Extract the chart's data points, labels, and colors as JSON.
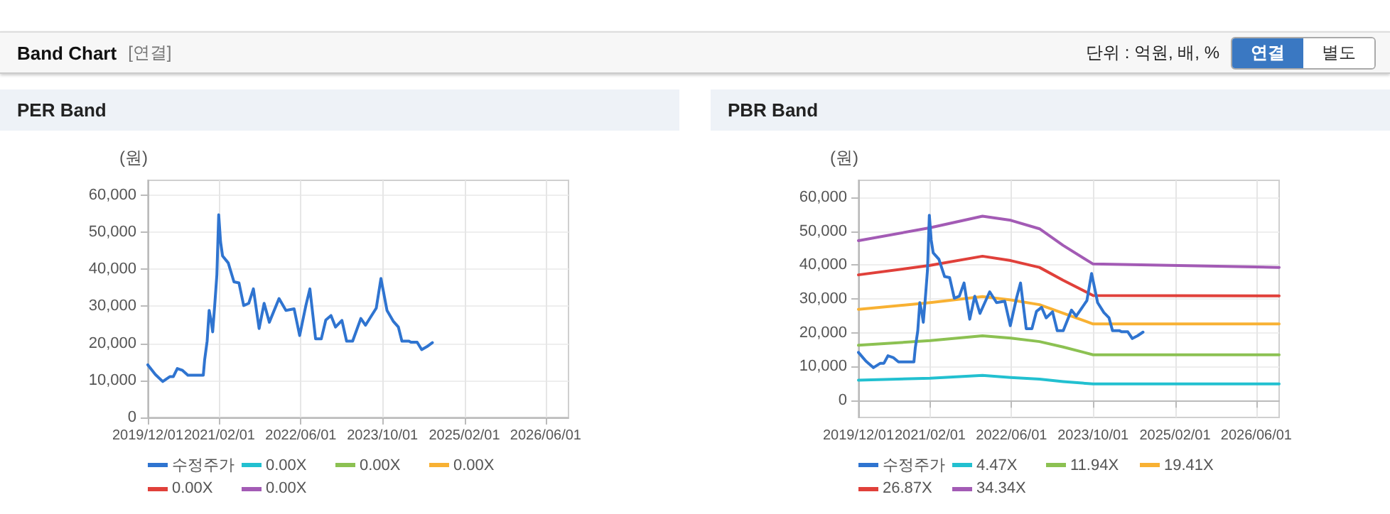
{
  "chart_data": [
    {
      "type": "line",
      "title": "PER Band",
      "ylabel": "(원)",
      "annotations": [
        "Band Chart",
        "[연결]",
        "단위 : 억원, 배, %",
        "연결",
        "별도"
      ],
      "xlim": [
        "2019-12-01",
        "2026-10-15"
      ],
      "xticks": [
        {
          "value": "2019-12-01",
          "label": "2019/12/01"
        },
        {
          "value": "2021-02-01",
          "label": "2021/02/01"
        },
        {
          "value": "2022-06-01",
          "label": "2022/06/01"
        },
        {
          "value": "2023-10-01",
          "label": "2023/10/01"
        },
        {
          "value": "2025-02-01",
          "label": "2025/02/01"
        },
        {
          "value": "2026-06-01",
          "label": "2026/06/01"
        }
      ],
      "ylim": [
        0,
        64000
      ],
      "yticks": [
        {
          "value": 0,
          "label": "0"
        },
        {
          "value": 10000,
          "label": "10,000"
        },
        {
          "value": 20000,
          "label": "20,000"
        },
        {
          "value": 30000,
          "label": "30,000"
        },
        {
          "value": 40000,
          "label": "40,000"
        },
        {
          "value": 50000,
          "label": "50,000"
        },
        {
          "value": 60000,
          "label": "60,000"
        }
      ],
      "grid": true,
      "legend": "bottom",
      "line_style": "solid",
      "series": [
        {
          "name": "수정주가",
          "color": "#2f74d0",
          "x": [
            "2019-12-01",
            "2020-01-15",
            "2020-02-28",
            "2020-04-10",
            "2020-05-01",
            "2020-05-25",
            "2020-06-25",
            "2020-07-27",
            "2020-10-27",
            "2020-11-04",
            "2020-11-19",
            "2020-12-01",
            "2020-12-12",
            "2020-12-22",
            "2021-01-04",
            "2021-01-16",
            "2021-01-27",
            "2021-02-07",
            "2021-02-19",
            "2021-03-25",
            "2021-04-28",
            "2021-05-28",
            "2021-06-25",
            "2021-07-25",
            "2021-08-22",
            "2021-09-25",
            "2021-10-25",
            "2021-11-25",
            "2022-01-22",
            "2022-03-04",
            "2022-04-22",
            "2022-05-25",
            "2022-07-01",
            "2022-07-25",
            "2022-08-28",
            "2022-10-01",
            "2022-10-28",
            "2022-11-28",
            "2022-12-25",
            "2023-02-01",
            "2023-03-01",
            "2023-04-06",
            "2023-05-25",
            "2023-06-22",
            "2023-08-25",
            "2023-09-22",
            "2023-10-28",
            "2023-12-04",
            "2024-01-04",
            "2024-01-25",
            "2024-03-07",
            "2024-03-19",
            "2024-04-25",
            "2024-05-22",
            "2024-06-22",
            "2024-07-25"
          ],
          "values": [
            14200,
            11600,
            9700,
            11000,
            11000,
            13200,
            12700,
            11400,
            11400,
            15500,
            20600,
            28900,
            26300,
            23100,
            30800,
            38500,
            54700,
            47400,
            43600,
            41700,
            36600,
            36300,
            30200,
            30800,
            34700,
            24000,
            30800,
            25700,
            32100,
            28900,
            29300,
            22100,
            30200,
            34700,
            21200,
            21200,
            26300,
            27500,
            24400,
            26200,
            20600,
            20600,
            26700,
            24900,
            29500,
            37500,
            28900,
            26000,
            24400,
            20600,
            20600,
            20300,
            20300,
            18300,
            19100,
            20200
          ]
        },
        {
          "name": "0.00X",
          "color": "#22c0d0"
        },
        {
          "name": "0.00X",
          "color": "#8cc152"
        },
        {
          "name": "0.00X",
          "color": "#f8b133"
        },
        {
          "name": "0.00X",
          "color": "#e0403a"
        },
        {
          "name": "0.00X",
          "color": "#a35bb5"
        }
      ]
    },
    {
      "type": "line",
      "title": "PBR Band",
      "ylabel": "(원)",
      "xlim": [
        "2019-12-01",
        "2026-10-15"
      ],
      "xticks": [
        {
          "value": "2019-12-01",
          "label": "2019/12/01"
        },
        {
          "value": "2021-02-01",
          "label": "2021/02/01"
        },
        {
          "value": "2022-06-01",
          "label": "2022/06/01"
        },
        {
          "value": "2023-10-01",
          "label": "2023/10/01"
        },
        {
          "value": "2025-02-01",
          "label": "2025/02/01"
        },
        {
          "value": "2026-06-01",
          "label": "2026/06/01"
        }
      ],
      "ylim": [
        -5000,
        65000
      ],
      "yticks": [
        {
          "value": 0,
          "label": "0"
        },
        {
          "value": 10000,
          "label": "10,000"
        },
        {
          "value": 20000,
          "label": "20,000"
        },
        {
          "value": 30000,
          "label": "30,000"
        },
        {
          "value": 40000,
          "label": "40,000"
        },
        {
          "value": 50000,
          "label": "50,000"
        },
        {
          "value": 60000,
          "label": "60,000"
        }
      ],
      "grid": true,
      "legend": "bottom",
      "line_style": "solid",
      "series": [
        {
          "name": "수정주가",
          "color": "#2f74d0",
          "x": [
            "2019-12-01",
            "2020-01-15",
            "2020-02-28",
            "2020-04-10",
            "2020-05-01",
            "2020-05-25",
            "2020-06-25",
            "2020-07-27",
            "2020-10-27",
            "2020-11-04",
            "2020-11-19",
            "2020-12-01",
            "2020-12-12",
            "2020-12-22",
            "2021-01-04",
            "2021-01-16",
            "2021-01-27",
            "2021-02-07",
            "2021-02-19",
            "2021-03-25",
            "2021-04-28",
            "2021-05-28",
            "2021-06-25",
            "2021-07-25",
            "2021-08-22",
            "2021-09-25",
            "2021-10-25",
            "2021-11-25",
            "2022-01-22",
            "2022-03-04",
            "2022-04-22",
            "2022-05-25",
            "2022-07-01",
            "2022-07-25",
            "2022-08-28",
            "2022-10-01",
            "2022-10-28",
            "2022-11-28",
            "2022-12-25",
            "2023-02-01",
            "2023-03-01",
            "2023-04-06",
            "2023-05-25",
            "2023-06-22",
            "2023-08-25",
            "2023-09-22",
            "2023-10-28",
            "2023-12-04",
            "2024-01-04",
            "2024-01-25",
            "2024-03-07",
            "2024-03-19",
            "2024-04-25",
            "2024-05-22",
            "2024-06-22",
            "2024-07-25"
          ],
          "values": [
            14200,
            11600,
            9700,
            11000,
            11000,
            13200,
            12700,
            11400,
            11400,
            15500,
            20600,
            28900,
            26300,
            23100,
            30800,
            38500,
            54700,
            47400,
            43600,
            41700,
            36600,
            36300,
            30200,
            30800,
            34700,
            24000,
            30800,
            25700,
            32100,
            28900,
            29300,
            22100,
            30200,
            34700,
            21200,
            21200,
            26300,
            27500,
            24400,
            26200,
            20600,
            20600,
            26700,
            24900,
            29500,
            37500,
            28900,
            26000,
            24400,
            20600,
            20600,
            20300,
            20300,
            18300,
            19100,
            20200
          ]
        },
        {
          "name": "4.47X",
          "color": "#22c0d0",
          "x": [
            "2019-12-01",
            "2021-02-01",
            "2021-12-10",
            "2022-05-28",
            "2022-11-15",
            "2023-04-05",
            "2023-10-01",
            "2026-10-15"
          ],
          "values": [
            6000,
            6600,
            7400,
            6800,
            6300,
            5600,
            4900,
            4900
          ]
        },
        {
          "name": "11.94X",
          "color": "#8cc152",
          "x": [
            "2019-12-01",
            "2021-02-01",
            "2021-12-10",
            "2022-05-28",
            "2022-11-15",
            "2023-04-05",
            "2023-10-01",
            "2026-10-15"
          ],
          "values": [
            16300,
            17700,
            19100,
            18400,
            17400,
            15800,
            13500,
            13500
          ]
        },
        {
          "name": "19.41X",
          "color": "#f8b133",
          "x": [
            "2019-12-01",
            "2021-02-01",
            "2021-12-10",
            "2022-05-28",
            "2022-11-15",
            "2023-04-05",
            "2023-10-01",
            "2026-10-15"
          ],
          "values": [
            26900,
            28900,
            30700,
            29700,
            28300,
            25800,
            22600,
            22600
          ]
        },
        {
          "name": "26.87X",
          "color": "#e0403a",
          "x": [
            "2019-12-01",
            "2021-02-01",
            "2021-12-10",
            "2022-05-28",
            "2022-11-15",
            "2023-04-05",
            "2023-10-01",
            "2026-10-15"
          ],
          "values": [
            37100,
            39900,
            42600,
            41300,
            39300,
            35500,
            31000,
            30900
          ]
        },
        {
          "name": "34.34X",
          "color": "#a35bb5",
          "x": [
            "2019-12-01",
            "2021-02-01",
            "2021-12-10",
            "2022-05-28",
            "2022-11-15",
            "2023-04-05",
            "2023-10-01",
            "2026-10-15"
          ],
          "values": [
            47200,
            51000,
            54400,
            53200,
            50700,
            45800,
            40300,
            39300
          ]
        }
      ]
    }
  ]
}
